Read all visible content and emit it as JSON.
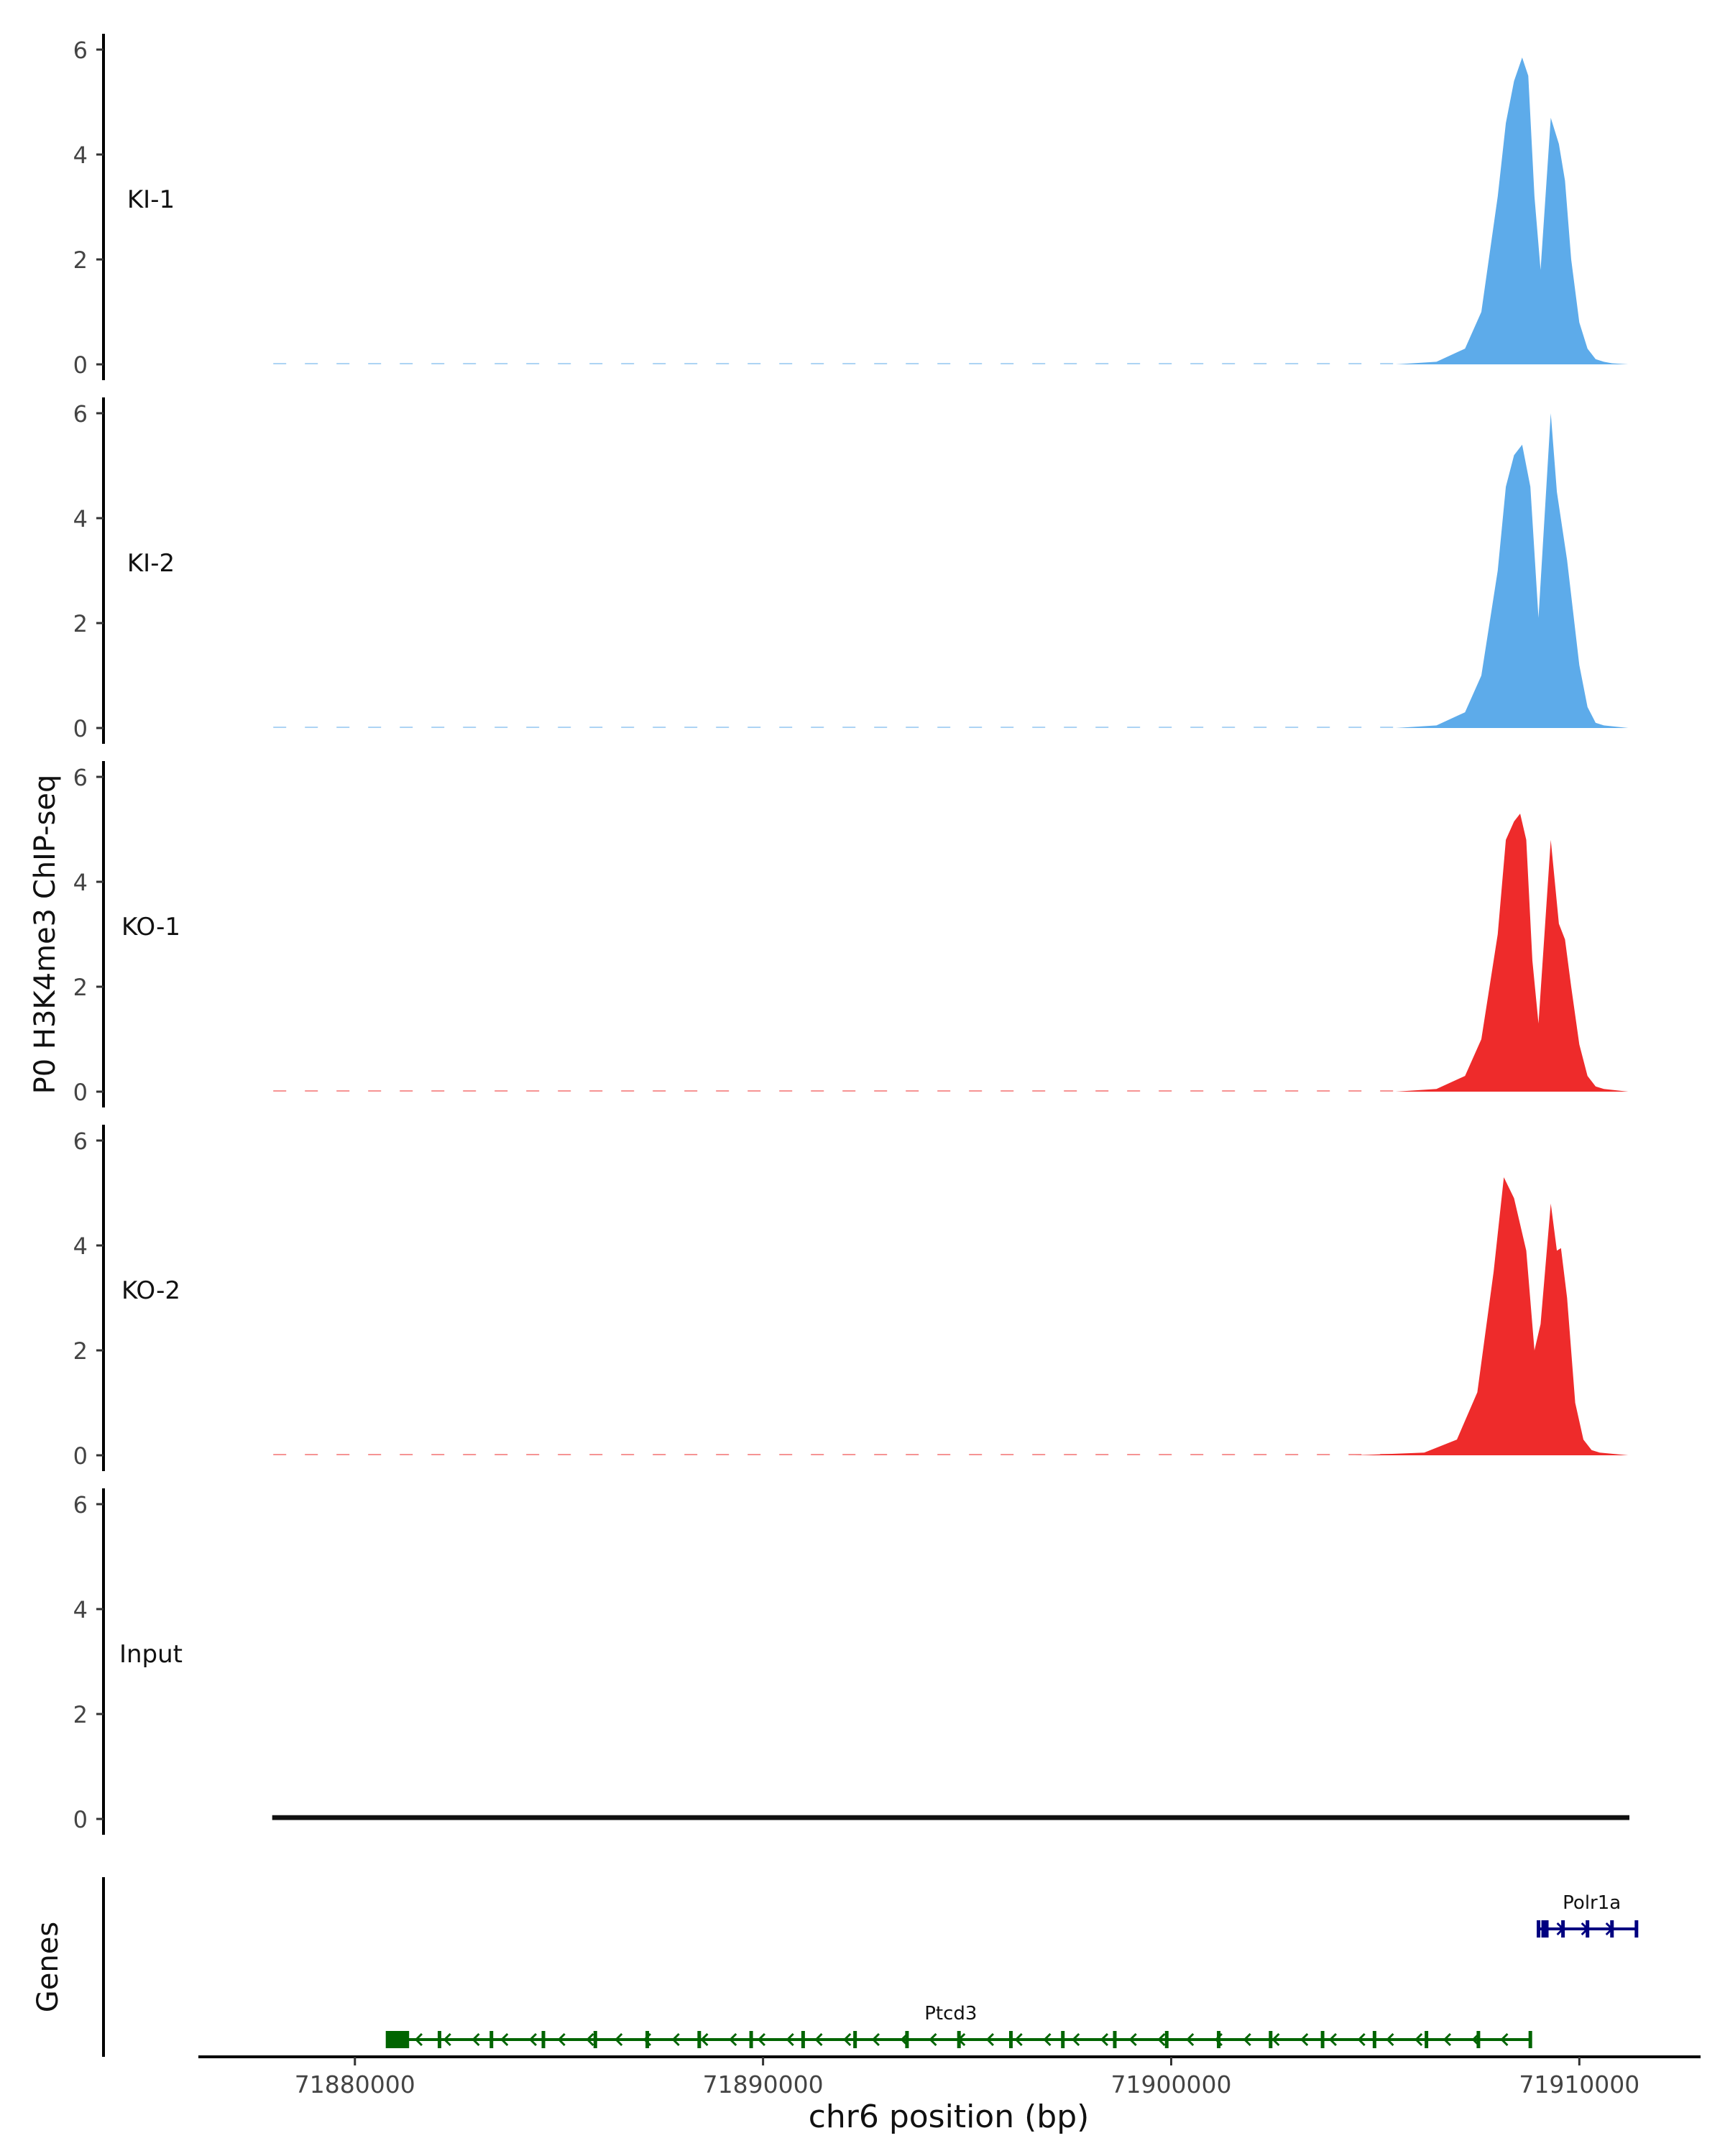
{
  "chart_data": {
    "type": "area",
    "ylabel": "P0 H3K4me3 ChIP-seq",
    "xlabel": "chr6 position (bp)",
    "xlim": [
      71876200,
      71912900
    ],
    "ylim": [
      0,
      6.3
    ],
    "y_ticks": [
      "0",
      "2",
      "4",
      "6"
    ],
    "x_ticks": [
      {
        "value": 71880000,
        "label": "71880000"
      },
      {
        "value": 71890000,
        "label": "71890000"
      },
      {
        "value": 71900000,
        "label": "71900000"
      },
      {
        "value": 71910000,
        "label": "71910000"
      }
    ],
    "grid": false,
    "colors": {
      "KI": "#5dabea",
      "KO": "#ee2b2b",
      "Input": "#111111"
    },
    "series": [
      {
        "name": "KI-1",
        "color": "#5dabea",
        "x": [
          71878000,
          71905500,
          71906500,
          71907200,
          71907600,
          71908000,
          71908200,
          71908400,
          71908600,
          71908750,
          71908900,
          71909050,
          71909300,
          71909500,
          71909650,
          71909800,
          71910000,
          71910200,
          71910400,
          71910600,
          71910800,
          71911200
        ],
        "y": [
          0,
          0,
          0.05,
          0.3,
          1.0,
          3.2,
          4.6,
          5.4,
          5.85,
          5.5,
          3.2,
          1.8,
          4.7,
          4.2,
          3.5,
          2.0,
          0.8,
          0.3,
          0.1,
          0.05,
          0.02,
          0
        ]
      },
      {
        "name": "KI-2",
        "color": "#5dabea",
        "x": [
          71878000,
          71905500,
          71906500,
          71907200,
          71907600,
          71908000,
          71908200,
          71908400,
          71908600,
          71908800,
          71909000,
          71909300,
          71909450,
          71909700,
          71910000,
          71910200,
          71910400,
          71910600,
          71911200
        ],
        "y": [
          0,
          0,
          0.05,
          0.3,
          1.0,
          3.0,
          4.6,
          5.2,
          5.4,
          4.6,
          2.1,
          6.0,
          4.5,
          3.2,
          1.2,
          0.4,
          0.1,
          0.05,
          0
        ]
      },
      {
        "name": "KO-1",
        "color": "#ee2b2b",
        "x": [
          71878000,
          71905500,
          71906500,
          71907200,
          71907600,
          71908000,
          71908200,
          71908400,
          71908550,
          71908700,
          71908850,
          71909000,
          71909300,
          71909500,
          71909650,
          71909800,
          71910000,
          71910200,
          71910400,
          71910600,
          71911200
        ],
        "y": [
          0,
          0,
          0.05,
          0.3,
          1.0,
          3.0,
          4.8,
          5.15,
          5.3,
          4.8,
          2.5,
          1.3,
          4.8,
          3.2,
          2.9,
          2.0,
          0.9,
          0.3,
          0.1,
          0.05,
          0
        ]
      },
      {
        "name": "KO-2",
        "color": "#ee2b2b",
        "x": [
          71878000,
          71904500,
          71906200,
          71907000,
          71907500,
          71907900,
          71908150,
          71908400,
          71908700,
          71908900,
          71909050,
          71909300,
          71909450,
          71909550,
          71909700,
          71909900,
          71910100,
          71910300,
          71910500,
          71911200
        ],
        "y": [
          0,
          0,
          0.05,
          0.3,
          1.2,
          3.5,
          5.3,
          4.9,
          3.9,
          2.0,
          2.5,
          4.8,
          3.9,
          3.95,
          3.0,
          1.0,
          0.3,
          0.1,
          0.05,
          0
        ]
      },
      {
        "name": "Input",
        "color": "#111111",
        "x": [
          71878000,
          71911200
        ],
        "y": [
          0.05,
          0.05
        ]
      }
    ],
    "genes_track": {
      "label": "Genes",
      "genes": [
        {
          "name": "Ptcd3",
          "start": 71880800,
          "end": 71908800,
          "strand": "-",
          "color": "#006400"
        },
        {
          "name": "Polr1a",
          "start": 71909000,
          "end": 71911400,
          "strand": "+",
          "color": "#000080"
        }
      ]
    }
  }
}
